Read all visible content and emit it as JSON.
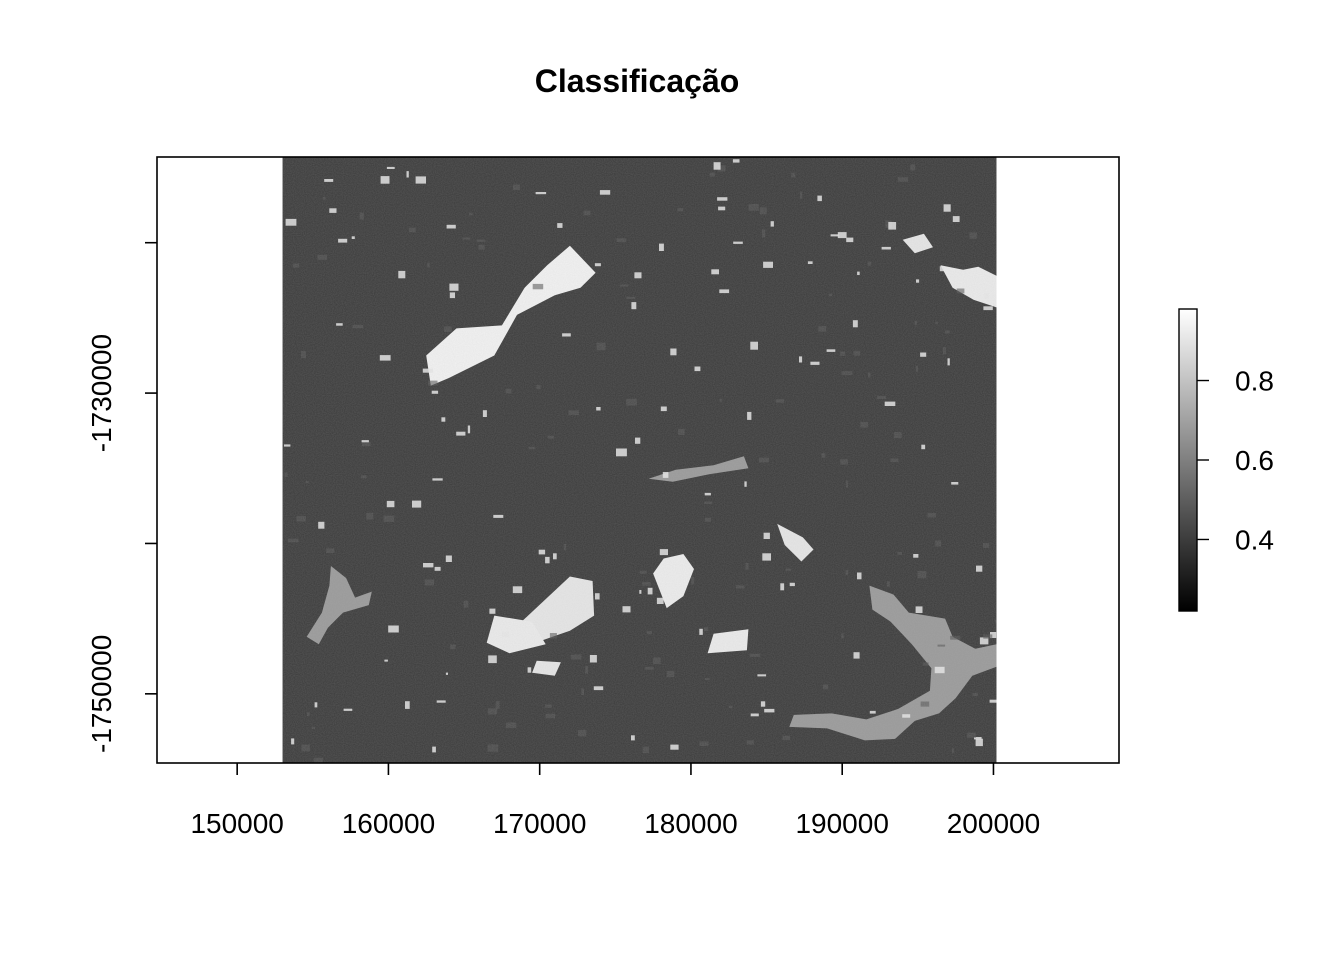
{
  "chart_data": {
    "type": "heatmap",
    "title": "Classificação",
    "xlabel": "",
    "ylabel": "",
    "colormap": "grayscale",
    "colors": {
      "low": "#000000",
      "high": "#ffffff",
      "background": "#3a3a3a"
    },
    "xlim": [
      144700,
      208300
    ],
    "ylim": [
      -1754600,
      -1714300
    ],
    "x_ticks": [
      150000,
      160000,
      170000,
      180000,
      190000,
      200000
    ],
    "x_tick_labels": [
      "150000",
      "160000",
      "170000",
      "180000",
      "190000",
      "200000"
    ],
    "y_ticks": [
      -1720000,
      -1730000,
      -1740000,
      -1750000
    ],
    "y_tick_labels": [
      "",
      "-1730000",
      "",
      "-1750000"
    ],
    "raster_extent": {
      "xmin": 153000,
      "xmax": 200200,
      "ymin": -1754600,
      "ymax": -1714300
    },
    "legend": {
      "position": "right",
      "range": [
        0.22,
        0.98
      ],
      "ticks": [
        0.4,
        0.6,
        0.8
      ],
      "tick_labels": [
        "0.4",
        "0.6",
        "0.8"
      ]
    },
    "features": [
      {
        "kind": "bright",
        "value": 0.95,
        "points": [
          [
            167500,
            -1725500
          ],
          [
            169000,
            -1723000
          ],
          [
            170500,
            -1721500
          ],
          [
            172000,
            -1720200
          ],
          [
            173700,
            -1722000
          ],
          [
            172700,
            -1723000
          ],
          [
            171000,
            -1723500
          ],
          [
            168500,
            -1724800
          ],
          [
            167000,
            -1727500
          ],
          [
            164000,
            -1729000
          ],
          [
            162800,
            -1729500
          ],
          [
            162500,
            -1727500
          ],
          [
            164500,
            -1725700
          ]
        ]
      },
      {
        "kind": "bright",
        "value": 0.93,
        "points": [
          [
            178200,
            -1741000
          ],
          [
            179500,
            -1740700
          ],
          [
            180200,
            -1741700
          ],
          [
            179500,
            -1743500
          ],
          [
            178400,
            -1744300
          ],
          [
            177500,
            -1742000
          ]
        ]
      },
      {
        "kind": "bright",
        "value": 0.9,
        "points": [
          [
            172000,
            -1742200
          ],
          [
            173500,
            -1742500
          ],
          [
            173600,
            -1744800
          ],
          [
            172000,
            -1745800
          ],
          [
            170000,
            -1746500
          ],
          [
            168800,
            -1745200
          ]
        ]
      },
      {
        "kind": "bright",
        "value": 0.92,
        "points": [
          [
            167000,
            -1744800
          ],
          [
            169500,
            -1745200
          ],
          [
            170400,
            -1746700
          ],
          [
            168000,
            -1747300
          ],
          [
            166500,
            -1746600
          ]
        ]
      },
      {
        "kind": "bright",
        "value": 0.9,
        "points": [
          [
            169800,
            -1747800
          ],
          [
            171400,
            -1747900
          ],
          [
            171000,
            -1748800
          ],
          [
            169500,
            -1748600
          ]
        ]
      },
      {
        "kind": "bright",
        "value": 0.92,
        "points": [
          [
            181500,
            -1746000
          ],
          [
            183800,
            -1745700
          ],
          [
            183700,
            -1747100
          ],
          [
            181100,
            -1747300
          ]
        ]
      },
      {
        "kind": "bright",
        "value": 0.9,
        "points": [
          [
            185700,
            -1738700
          ],
          [
            187400,
            -1739600
          ],
          [
            188100,
            -1740400
          ],
          [
            187300,
            -1741200
          ],
          [
            186200,
            -1740100
          ]
        ]
      },
      {
        "kind": "bright",
        "value": 0.92,
        "points": [
          [
            196500,
            -1721500
          ],
          [
            198000,
            -1721800
          ],
          [
            199000,
            -1721600
          ],
          [
            200200,
            -1722200
          ],
          [
            200200,
            -1724300
          ],
          [
            198700,
            -1723800
          ],
          [
            197300,
            -1723000
          ]
        ]
      },
      {
        "kind": "bright",
        "value": 0.9,
        "points": [
          [
            194000,
            -1719800
          ],
          [
            195400,
            -1719400
          ],
          [
            196000,
            -1720300
          ],
          [
            194800,
            -1720700
          ]
        ]
      },
      {
        "kind": "gray",
        "value": 0.6,
        "points": [
          [
            181500,
            -1734800
          ],
          [
            183500,
            -1734200
          ],
          [
            183800,
            -1735000
          ],
          [
            181200,
            -1735400
          ],
          [
            178800,
            -1735900
          ],
          [
            177200,
            -1735700
          ],
          [
            179000,
            -1735100
          ]
        ]
      },
      {
        "kind": "gray",
        "value": 0.6,
        "points": [
          [
            191800,
            -1742800
          ],
          [
            193400,
            -1743400
          ],
          [
            194400,
            -1744600
          ],
          [
            196800,
            -1745000
          ],
          [
            197300,
            -1746200
          ],
          [
            198800,
            -1747000
          ],
          [
            200200,
            -1746700
          ],
          [
            200200,
            -1748200
          ],
          [
            198600,
            -1748800
          ],
          [
            197500,
            -1750300
          ],
          [
            196400,
            -1751300
          ],
          [
            194800,
            -1751800
          ],
          [
            193500,
            -1753000
          ],
          [
            191500,
            -1753100
          ],
          [
            189000,
            -1752300
          ],
          [
            186500,
            -1752200
          ],
          [
            186800,
            -1751400
          ],
          [
            189300,
            -1751300
          ],
          [
            191600,
            -1751700
          ],
          [
            193700,
            -1751000
          ],
          [
            195800,
            -1749800
          ],
          [
            195900,
            -1748300
          ],
          [
            194600,
            -1746700
          ],
          [
            193200,
            -1745200
          ],
          [
            192000,
            -1744400
          ]
        ]
      },
      {
        "kind": "gray",
        "value": 0.6,
        "points": [
          [
            156200,
            -1741500
          ],
          [
            157200,
            -1742300
          ],
          [
            157800,
            -1743600
          ],
          [
            158900,
            -1743200
          ],
          [
            158700,
            -1744100
          ],
          [
            157000,
            -1744600
          ],
          [
            156000,
            -1745600
          ],
          [
            155400,
            -1746700
          ],
          [
            154600,
            -1746200
          ],
          [
            155600,
            -1744600
          ],
          [
            156100,
            -1742800
          ]
        ]
      }
    ]
  }
}
